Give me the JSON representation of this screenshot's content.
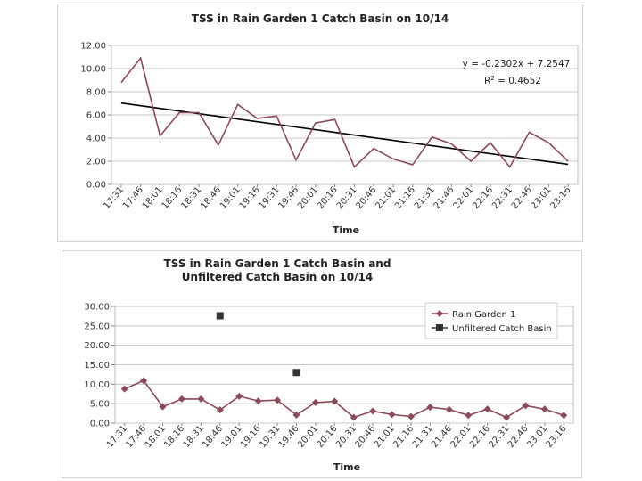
{
  "chart_data": [
    {
      "type": "line",
      "title": "TSS in Rain Garden 1 Catch Basin on 10/14",
      "xlabel": "Time",
      "ylabel": "",
      "ylim": [
        0,
        12
      ],
      "yticks": [
        "0.00",
        "2.00",
        "4.00",
        "6.00",
        "8.00",
        "10.00",
        "12.00"
      ],
      "categories": [
        "17:31",
        "17:46",
        "18:01",
        "18:16",
        "18:31",
        "18:46",
        "19:01",
        "19:16",
        "19:31",
        "19:46",
        "20:01",
        "20:16",
        "20:31",
        "20:46",
        "21:01",
        "21:16",
        "21:31",
        "21:46",
        "22:01",
        "22:16",
        "22:31",
        "22:46",
        "23:01",
        "23:16"
      ],
      "series": [
        {
          "values": [
            8.8,
            10.9,
            4.2,
            6.2,
            6.2,
            3.4,
            6.9,
            5.7,
            5.9,
            2.1,
            5.3,
            5.6,
            1.5,
            3.1,
            2.2,
            1.7,
            4.1,
            3.5,
            2.0,
            3.6,
            1.5,
            4.5,
            3.6,
            2.0
          ],
          "color": "#8b4a59"
        }
      ],
      "trendline": {
        "slope": -0.2302,
        "intercept": 7.2547,
        "color": "#000000"
      },
      "equation": "y = -0.2302x + 7.2547",
      "r2_base": "R",
      "r2_sup": "2",
      "r2_value": " = 0.4652",
      "grid": true,
      "legend": "none"
    },
    {
      "type": "line",
      "title_lines": [
        "TSS in Rain Garden 1 Catch Basin and",
        "Unfiltered Catch Basin on 10/14"
      ],
      "xlabel": "Time",
      "ylabel": "",
      "ylim": [
        0,
        30
      ],
      "yticks": [
        "0.00",
        "5.00",
        "10.00",
        "15.00",
        "20.00",
        "25.00",
        "30.00"
      ],
      "categories": [
        "17:31",
        "17:46",
        "18:01",
        "18:16",
        "18:31",
        "18:46",
        "19:01",
        "19:16",
        "19:31",
        "19:46",
        "20:01",
        "20:16",
        "20:31",
        "20:46",
        "21:01",
        "21:16",
        "21:31",
        "21:46",
        "22:01",
        "22:16",
        "22:31",
        "22:46",
        "23:01",
        "23:16"
      ],
      "series": [
        {
          "name": "Rain Garden 1",
          "values": [
            8.8,
            10.9,
            4.2,
            6.2,
            6.2,
            3.4,
            6.9,
            5.7,
            5.9,
            2.1,
            5.3,
            5.6,
            1.5,
            3.1,
            2.2,
            1.7,
            4.1,
            3.5,
            2.0,
            3.6,
            1.5,
            4.5,
            3.6,
            2.0
          ],
          "color": "#8b4a59",
          "marker": "diamond"
        },
        {
          "name": "Unfiltered Catch Basin",
          "points": [
            {
              "x": "18:46",
              "y": 27.6
            },
            {
              "x": "19:46",
              "y": 13.0
            }
          ],
          "color": "#333333",
          "marker": "square"
        }
      ],
      "grid": true,
      "legend": "top-right"
    }
  ]
}
